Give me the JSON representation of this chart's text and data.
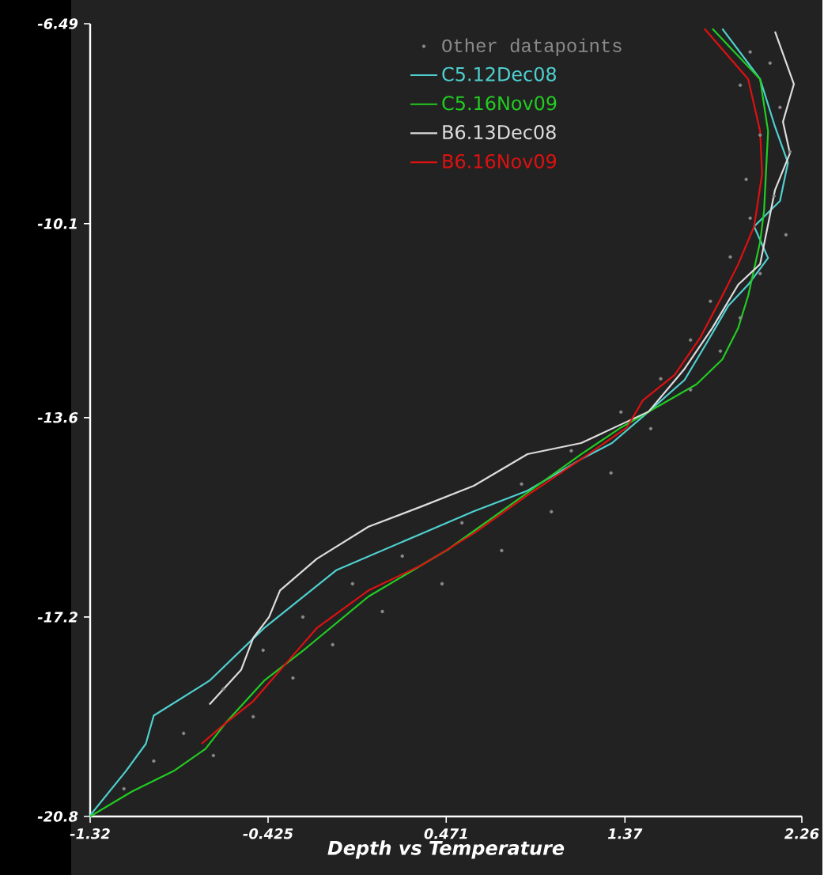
{
  "chart_data": {
    "type": "line",
    "xlabel": "Depth vs Temperature",
    "xlim": [
      -1.32,
      2.26
    ],
    "xticks": [
      -1.32,
      -0.425,
      0.471,
      1.37,
      2.26
    ],
    "ylim": [
      -20.8,
      -6.49
    ],
    "yticks": [
      -20.8,
      -17.2,
      -13.6,
      -10.1,
      -6.49
    ],
    "legend": "top right",
    "grid": false,
    "series": [
      {
        "name": "Other datapoints",
        "type": "scatter",
        "marker": "circle",
        "color": "#8a8a8a",
        "x": [
          2.0,
          2.1,
          1.95,
          2.15,
          2.05,
          2.2,
          1.98,
          2.12,
          2.0,
          2.18,
          1.9,
          2.05,
          1.8,
          1.95,
          1.7,
          1.85,
          1.55,
          1.7,
          1.35,
          1.5,
          1.1,
          1.3,
          0.85,
          1.0,
          0.55,
          0.75,
          0.25,
          0.45,
          0.0,
          0.15,
          -0.25,
          -0.1,
          -0.45,
          -0.3,
          -0.65,
          -0.5,
          -0.85,
          -0.7,
          -1.0,
          -1.15
        ],
        "values": [
          -7.0,
          -7.2,
          -7.6,
          -8.0,
          -8.5,
          -8.8,
          -9.3,
          -9.6,
          -10.0,
          -10.3,
          -10.7,
          -11.0,
          -11.5,
          -11.8,
          -12.2,
          -12.4,
          -12.9,
          -13.1,
          -13.5,
          -13.8,
          -14.2,
          -14.6,
          -14.8,
          -15.3,
          -15.5,
          -16.0,
          -16.1,
          -16.6,
          -16.6,
          -17.1,
          -17.2,
          -17.7,
          -17.8,
          -18.3,
          -18.5,
          -19.0,
          -19.3,
          -19.7,
          -19.8,
          -20.3
        ]
      },
      {
        "name": "C5.12Dec08",
        "color": "#4fd0d0",
        "x": [
          1.86,
          2.05,
          2.125,
          2.19,
          2.15,
          2.02,
          2.09,
          1.99,
          1.89,
          1.78,
          1.67,
          1.49,
          1.305,
          1.15,
          0.88,
          0.61,
          0.35,
          -0.08,
          -0.445,
          -0.72,
          -1.0,
          -1.04,
          -1.14,
          -1.32
        ],
        "values": [
          -6.58,
          -7.49,
          -8.35,
          -9.0,
          -9.69,
          -10.15,
          -10.72,
          -11.2,
          -11.58,
          -12.26,
          -12.92,
          -13.49,
          -14.06,
          -14.35,
          -14.92,
          -15.29,
          -15.69,
          -16.35,
          -17.4,
          -18.35,
          -18.98,
          -19.49,
          -19.98,
          -20.78
        ]
      },
      {
        "name": "C5.16Nov09",
        "color": "#22cc22",
        "x": [
          1.81,
          2.05,
          2.09,
          2.07,
          2.05,
          1.99,
          1.94,
          1.86,
          1.73,
          1.35,
          1.15,
          0.75,
          0.48,
          0.08,
          -0.24,
          -0.445,
          -0.64,
          -0.74,
          -0.9,
          -1.11,
          -1.32
        ],
        "values": [
          -6.58,
          -7.49,
          -8.43,
          -9.86,
          -10.43,
          -11.4,
          -11.98,
          -12.55,
          -13.0,
          -13.78,
          -14.26,
          -15.29,
          -15.98,
          -16.83,
          -17.78,
          -18.35,
          -19.12,
          -19.58,
          -19.98,
          -20.35,
          -20.8
        ]
      },
      {
        "name": "B6.13Dec08",
        "color": "#dddddd",
        "x": [
          2.125,
          2.22,
          2.165,
          2.2,
          2.125,
          2.05,
          1.94,
          1.81,
          1.67,
          1.49,
          1.15,
          0.88,
          0.61,
          0.35,
          0.08,
          -0.18,
          -0.365,
          -0.42,
          -0.5,
          -0.56,
          -0.72
        ],
        "values": [
          -6.63,
          -7.58,
          -8.26,
          -8.83,
          -9.49,
          -10.83,
          -11.2,
          -11.98,
          -12.72,
          -13.49,
          -14.06,
          -14.26,
          -14.83,
          -15.2,
          -15.57,
          -16.15,
          -16.72,
          -17.2,
          -17.58,
          -18.15,
          -18.78
        ]
      },
      {
        "name": "B6.16Nov09",
        "color": "#dd1111",
        "x": [
          1.77,
          1.99,
          2.05,
          2.06,
          2.02,
          1.94,
          1.86,
          1.75,
          1.62,
          1.46,
          1.38,
          1.15,
          0.88,
          0.61,
          0.35,
          0.08,
          -0.18,
          -0.34,
          -0.5,
          -0.64,
          -0.76
        ],
        "values": [
          -6.58,
          -7.49,
          -8.43,
          -9.2,
          -10.15,
          -10.83,
          -11.4,
          -12.15,
          -12.83,
          -13.29,
          -13.78,
          -14.35,
          -15.0,
          -15.69,
          -16.26,
          -16.72,
          -17.4,
          -18.06,
          -18.72,
          -19.12,
          -19.49
        ]
      }
    ]
  }
}
